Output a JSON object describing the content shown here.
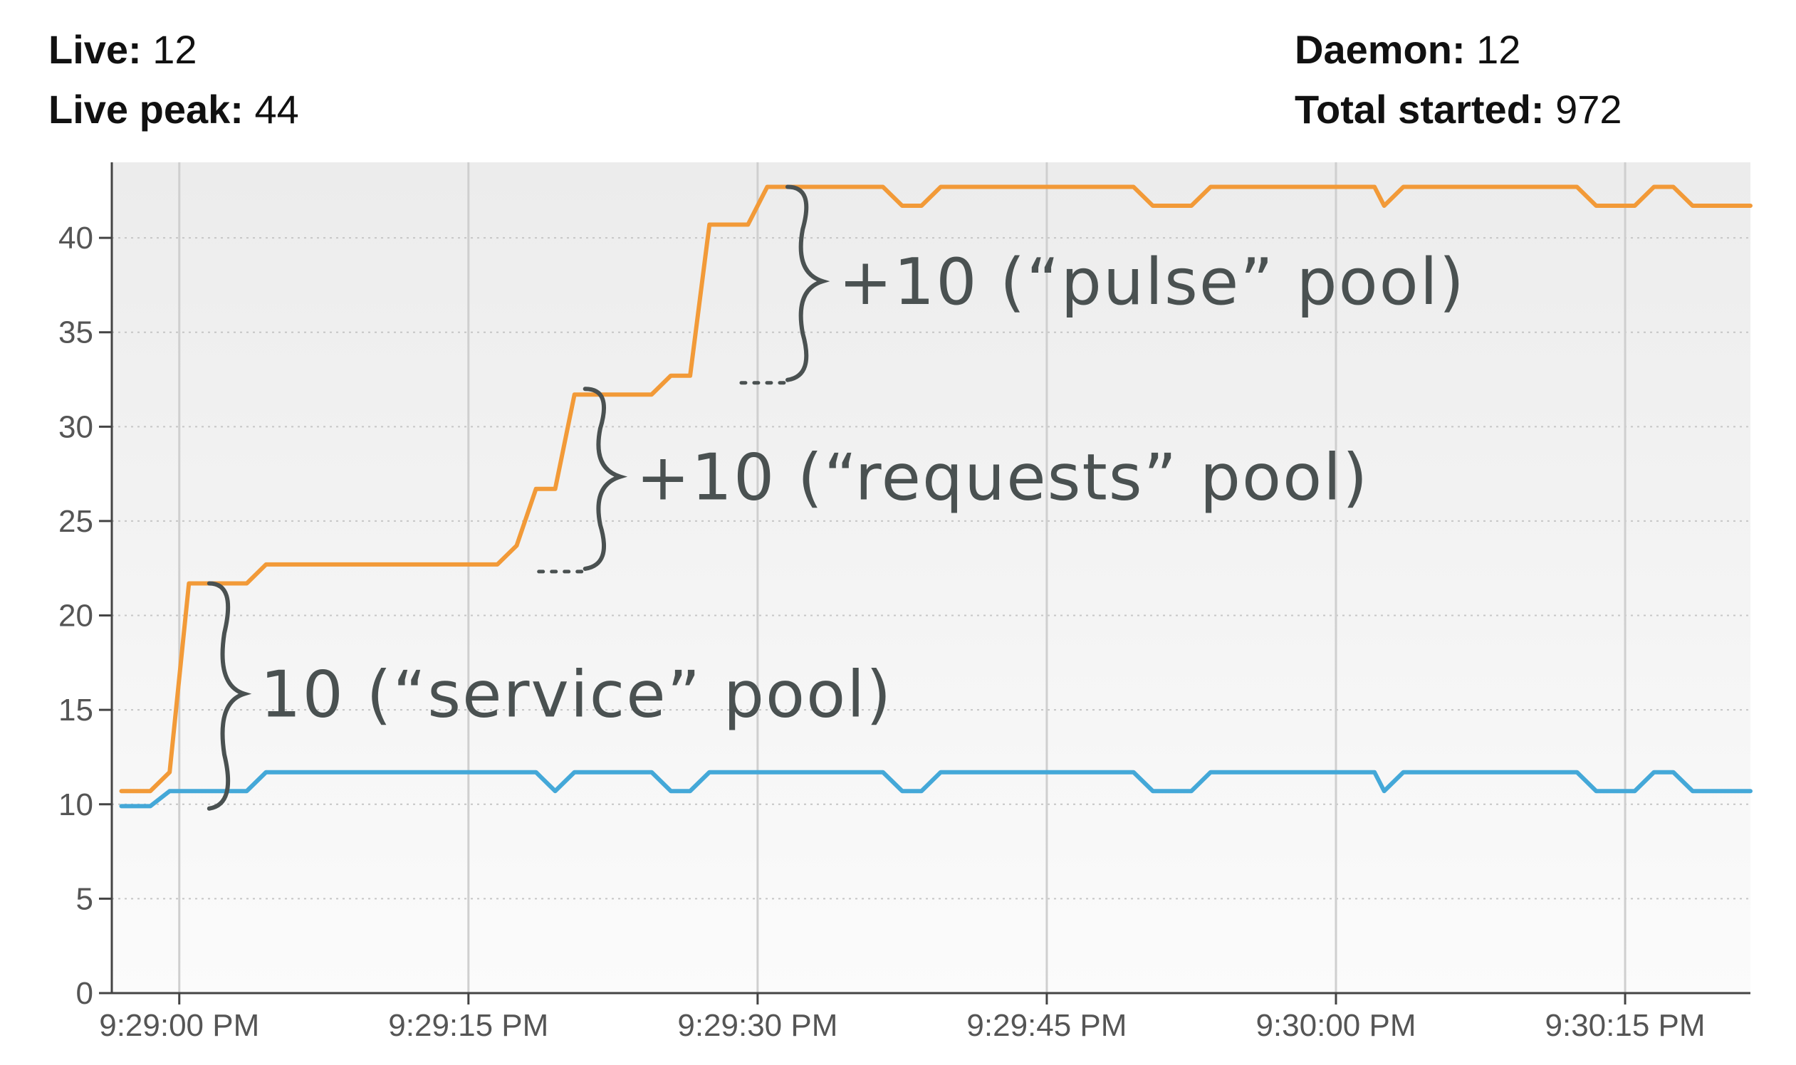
{
  "stats": {
    "live_label": "Live:",
    "live_value": "12",
    "live_peak_label": "Live peak:",
    "live_peak_value": "44",
    "daemon_label": "Daemon:",
    "daemon_value": "12",
    "total_started_label": "Total started:",
    "total_started_value": "972"
  },
  "annotations": [
    {
      "text": "10 (“service” pool)",
      "from": 10,
      "to": 21.7,
      "at_seconds": 1
    },
    {
      "text": "+10 (“requests” pool)",
      "from": 22.7,
      "to": 32,
      "at_seconds": 20.5
    },
    {
      "text": "+10 (“pulse” pool)",
      "from": 32.7,
      "to": 42.7,
      "at_seconds": 31
    }
  ],
  "chart_data": {
    "type": "line",
    "title": "",
    "xlabel": "",
    "ylabel": "",
    "x_seconds_after": "9:29:00 PM",
    "xlim": [
      -3.5,
      81.5
    ],
    "ylim": [
      0,
      44
    ],
    "grid": true,
    "x_tick_labels": [
      "9:29:00 PM",
      "9:29:15 PM",
      "9:29:30 PM",
      "9:29:45 PM",
      "9:30:00 PM",
      "9:30:15 PM"
    ],
    "x_ticks": [
      0,
      15,
      30,
      45,
      60,
      75
    ],
    "y_ticks": [
      0,
      5,
      10,
      15,
      20,
      25,
      30,
      35,
      40
    ],
    "series": [
      {
        "color": "#f29a38",
        "points": [
          [
            -3,
            10.7
          ],
          [
            -1.5,
            10.7
          ],
          [
            -0.5,
            11.7
          ],
          [
            0.5,
            21.7
          ],
          [
            3.5,
            21.7
          ],
          [
            4.5,
            22.7
          ],
          [
            16.5,
            22.7
          ],
          [
            17.5,
            23.7
          ],
          [
            18.5,
            26.7
          ],
          [
            19.5,
            26.7
          ],
          [
            20.5,
            31.7
          ],
          [
            24.5,
            31.7
          ],
          [
            25.5,
            32.7
          ],
          [
            26.5,
            32.7
          ],
          [
            27.5,
            40.7
          ],
          [
            29.5,
            40.7
          ],
          [
            30.5,
            42.7
          ],
          [
            36.5,
            42.7
          ],
          [
            37.5,
            41.7
          ],
          [
            38.5,
            41.7
          ],
          [
            39.5,
            42.7
          ],
          [
            49.5,
            42.7
          ],
          [
            50.5,
            41.7
          ],
          [
            52.5,
            41.7
          ],
          [
            53.5,
            42.7
          ],
          [
            62,
            42.7
          ],
          [
            62.5,
            41.7
          ],
          [
            63.5,
            42.7
          ],
          [
            72.5,
            42.7
          ],
          [
            73.5,
            41.7
          ],
          [
            75.5,
            41.7
          ],
          [
            76.5,
            42.7
          ],
          [
            77.5,
            42.7
          ],
          [
            78.5,
            41.7
          ],
          [
            81.5,
            41.7
          ]
        ]
      },
      {
        "color": "#44a8d8",
        "points": [
          [
            -3,
            9.9
          ],
          [
            -1.5,
            9.9
          ],
          [
            -0.5,
            10.7
          ],
          [
            3.5,
            10.7
          ],
          [
            4.5,
            11.7
          ],
          [
            18.5,
            11.7
          ],
          [
            19.5,
            10.7
          ],
          [
            20.5,
            11.7
          ],
          [
            24.5,
            11.7
          ],
          [
            25.5,
            10.7
          ],
          [
            26.5,
            10.7
          ],
          [
            27.5,
            11.7
          ],
          [
            36.5,
            11.7
          ],
          [
            37.5,
            10.7
          ],
          [
            38.5,
            10.7
          ],
          [
            39.5,
            11.7
          ],
          [
            49.5,
            11.7
          ],
          [
            50.5,
            10.7
          ],
          [
            52.5,
            10.7
          ],
          [
            53.5,
            11.7
          ],
          [
            62,
            11.7
          ],
          [
            62.5,
            10.7
          ],
          [
            63.5,
            11.7
          ],
          [
            72.5,
            11.7
          ],
          [
            73.5,
            10.7
          ],
          [
            75.5,
            10.7
          ],
          [
            76.5,
            11.7
          ],
          [
            77.5,
            11.7
          ],
          [
            78.5,
            10.7
          ],
          [
            81.5,
            10.7
          ]
        ]
      }
    ]
  }
}
